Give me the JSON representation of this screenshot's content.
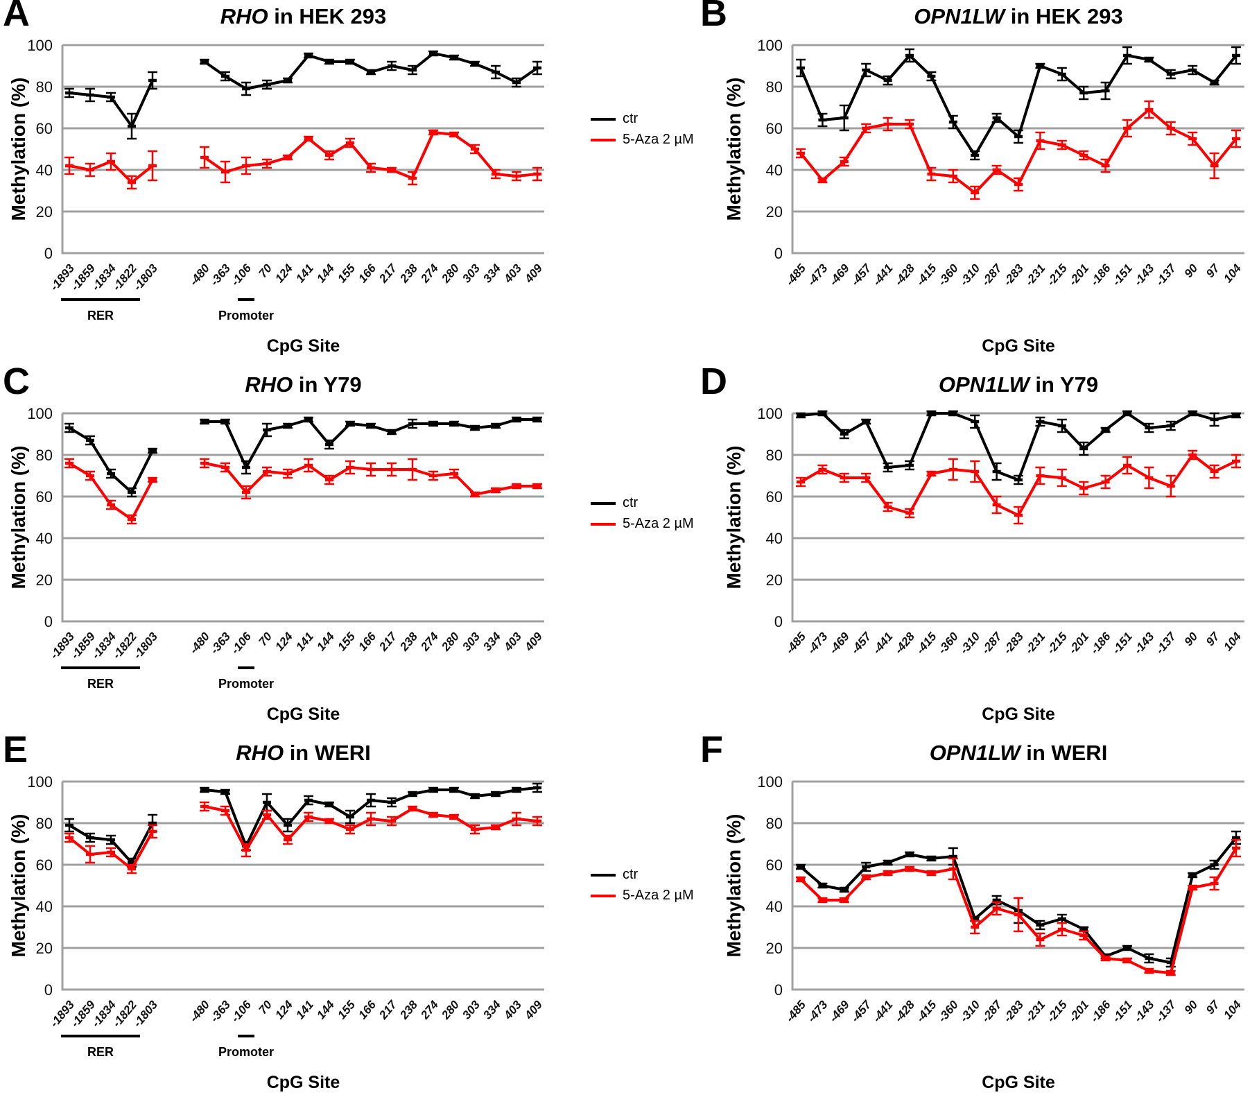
{
  "legend": {
    "ctr_label": "ctr",
    "aza_label": "5-Aza 2 µM"
  },
  "colors": {
    "ctr": "#000000",
    "aza": "#ff0000",
    "grid": "#a0a0a0",
    "tick_text": "#111111"
  },
  "axis": {
    "ylabel": "Methylation (%)",
    "xlabel": "CpG Site",
    "yticks": [
      0,
      20,
      40,
      60,
      80,
      100
    ],
    "ylim": [
      0,
      100
    ]
  },
  "chart_data": [
    {
      "panel_label": "A",
      "title_gene": "RHO",
      "title_suffix": " in HEK 293",
      "type": "line",
      "x_group_gap_after": 4,
      "regions": [
        {
          "label": "RER",
          "start": 0,
          "end": 3
        },
        {
          "label": "Promoter",
          "start": 7,
          "end": 7
        }
      ],
      "categories": [
        "-1893",
        "-1859",
        "-1834",
        "-1822",
        "-1803",
        "-480",
        "-363",
        "-106",
        "70",
        "124",
        "141",
        "144",
        "155",
        "166",
        "217",
        "238",
        "274",
        "280",
        "303",
        "334",
        "403",
        "409"
      ],
      "series": [
        {
          "name": "ctr",
          "color": "#000000",
          "values": [
            77,
            76,
            75,
            61,
            83,
            92,
            85,
            79,
            81,
            83,
            95,
            92,
            92,
            87,
            90,
            88,
            96,
            94,
            91,
            87,
            82,
            89
          ],
          "errors": [
            2,
            3,
            2,
            6,
            4,
            1,
            2,
            3,
            2,
            1,
            1,
            1,
            1,
            1,
            2,
            2,
            1,
            1,
            1,
            3,
            2,
            3
          ]
        },
        {
          "name": "5-Aza 2 µM",
          "color": "#ff0000",
          "values": [
            42,
            40,
            44,
            34,
            42,
            46,
            39,
            42,
            43,
            46,
            55,
            47,
            53,
            41,
            40,
            36,
            58,
            57,
            50,
            38,
            37,
            38
          ],
          "errors": [
            4,
            3,
            4,
            3,
            7,
            5,
            5,
            4,
            2,
            1,
            1,
            2,
            2,
            2,
            1,
            3,
            1,
            1,
            2,
            2,
            2,
            3
          ]
        }
      ]
    },
    {
      "panel_label": "B",
      "title_gene": "OPN1LW",
      "title_suffix": " in HEK 293",
      "type": "line",
      "x_group_gap_after": -1,
      "regions": [],
      "categories": [
        "-485",
        "-473",
        "-469",
        "-457",
        "-441",
        "-428",
        "-415",
        "-360",
        "-310",
        "-287",
        "-283",
        "-231",
        "-215",
        "-201",
        "-186",
        "-151",
        "-143",
        "-137",
        "90",
        "97",
        "104"
      ],
      "series": [
        {
          "name": "ctr",
          "color": "#000000",
          "values": [
            89,
            64,
            65,
            88,
            83,
            95,
            85,
            63,
            47,
            65,
            56,
            90,
            86,
            77,
            78,
            95,
            93,
            86,
            88,
            82,
            95
          ],
          "errors": [
            4,
            3,
            6,
            3,
            2,
            3,
            2,
            3,
            2,
            2,
            3,
            1,
            3,
            3,
            4,
            4,
            1,
            2,
            2,
            1,
            4
          ]
        },
        {
          "name": "5-Aza 2 µM",
          "color": "#ff0000",
          "values": [
            48,
            35,
            44,
            60,
            62,
            62,
            38,
            37,
            29,
            40,
            33,
            54,
            52,
            47,
            42,
            60,
            69,
            60,
            55,
            42,
            55
          ],
          "errors": [
            2,
            1,
            2,
            2,
            3,
            2,
            3,
            3,
            3,
            2,
            3,
            4,
            2,
            2,
            3,
            4,
            4,
            3,
            3,
            6,
            4
          ]
        }
      ]
    },
    {
      "panel_label": "C",
      "title_gene": "RHO",
      "title_suffix": " in Y79",
      "type": "line",
      "x_group_gap_after": 4,
      "regions": [
        {
          "label": "RER",
          "start": 0,
          "end": 3
        },
        {
          "label": "Promoter",
          "start": 7,
          "end": 7
        }
      ],
      "categories": [
        "-1893",
        "-1859",
        "-1834",
        "-1822",
        "-1803",
        "-480",
        "-363",
        "-106",
        "70",
        "124",
        "141",
        "144",
        "155",
        "166",
        "217",
        "238",
        "274",
        "280",
        "303",
        "334",
        "403",
        "409"
      ],
      "series": [
        {
          "name": "ctr",
          "color": "#000000",
          "values": [
            93,
            87,
            71,
            62,
            82,
            96,
            96,
            74,
            92,
            94,
            97,
            85,
            95,
            94,
            91,
            95,
            95,
            95,
            93,
            94,
            97,
            97
          ],
          "errors": [
            2,
            2,
            2,
            2,
            1,
            1,
            1,
            3,
            3,
            1,
            1,
            2,
            1,
            1,
            1,
            2,
            1,
            1,
            1,
            1,
            1,
            1
          ]
        },
        {
          "name": "5-Aza 2 µM",
          "color": "#ff0000",
          "values": [
            76,
            70,
            56,
            49,
            68,
            76,
            74,
            62,
            72,
            71,
            75,
            68,
            74,
            73,
            73,
            73,
            70,
            71,
            61,
            63,
            65,
            65
          ],
          "errors": [
            2,
            2,
            2,
            2,
            1,
            2,
            2,
            3,
            2,
            2,
            3,
            2,
            3,
            3,
            3,
            5,
            2,
            2,
            1,
            1,
            1,
            1
          ]
        }
      ]
    },
    {
      "panel_label": "D",
      "title_gene": "OPN1LW",
      "title_suffix": " in Y79",
      "type": "line",
      "x_group_gap_after": -1,
      "regions": [],
      "categories": [
        "-485",
        "-473",
        "-469",
        "-457",
        "-441",
        "-428",
        "-415",
        "-360",
        "-310",
        "-287",
        "-283",
        "-231",
        "-215",
        "-201",
        "-186",
        "-151",
        "-143",
        "-137",
        "90",
        "97",
        "104"
      ],
      "series": [
        {
          "name": "ctr",
          "color": "#000000",
          "values": [
            99,
            100,
            90,
            96,
            74,
            75,
            100,
            100,
            96,
            72,
            68,
            96,
            94,
            83,
            92,
            100,
            93,
            94,
            100,
            97,
            99
          ],
          "errors": [
            1,
            1,
            2,
            1,
            2,
            2,
            1,
            1,
            3,
            4,
            2,
            2,
            3,
            3,
            1,
            1,
            2,
            2,
            1,
            3,
            1
          ]
        },
        {
          "name": "5-Aza 2 µM",
          "color": "#ff0000",
          "values": [
            67,
            73,
            69,
            69,
            55,
            52,
            71,
            73,
            72,
            56,
            51,
            70,
            69,
            64,
            67,
            75,
            69,
            65,
            80,
            72,
            77
          ],
          "errors": [
            2,
            2,
            2,
            2,
            2,
            2,
            1,
            5,
            5,
            4,
            4,
            4,
            4,
            3,
            3,
            4,
            5,
            5,
            2,
            3,
            3
          ]
        }
      ]
    },
    {
      "panel_label": "E",
      "title_gene": "RHO",
      "title_suffix": " in WERI",
      "type": "line",
      "x_group_gap_after": 4,
      "regions": [
        {
          "label": "RER",
          "start": 0,
          "end": 3
        },
        {
          "label": "Promoter",
          "start": 7,
          "end": 7
        }
      ],
      "categories": [
        "-1893",
        "-1859",
        "-1834",
        "-1822",
        "-1803",
        "-480",
        "-363",
        "-106",
        "70",
        "124",
        "141",
        "144",
        "155",
        "166",
        "217",
        "238",
        "274",
        "280",
        "303",
        "334",
        "403",
        "409"
      ],
      "series": [
        {
          "name": "ctr",
          "color": "#000000",
          "values": [
            79,
            73,
            72,
            61,
            80,
            96,
            95,
            69,
            90,
            79,
            91,
            89,
            83,
            91,
            90,
            94,
            96,
            96,
            93,
            94,
            96,
            97
          ],
          "errors": [
            3,
            2,
            2,
            2,
            4,
            1,
            1,
            2,
            4,
            3,
            2,
            1,
            3,
            3,
            2,
            1,
            1,
            1,
            1,
            1,
            1,
            2
          ]
        },
        {
          "name": "5-Aza 2 µM",
          "color": "#ff0000",
          "values": [
            73,
            65,
            66,
            58,
            76,
            88,
            86,
            67,
            84,
            72,
            83,
            81,
            77,
            82,
            81,
            87,
            84,
            83,
            77,
            78,
            82,
            81
          ],
          "errors": [
            2,
            4,
            2,
            2,
            3,
            2,
            2,
            3,
            2,
            2,
            2,
            1,
            2,
            3,
            2,
            1,
            1,
            1,
            2,
            1,
            3,
            2
          ]
        }
      ]
    },
    {
      "panel_label": "F",
      "title_gene": "OPN1LW",
      "title_suffix": " in WERI",
      "type": "line",
      "x_group_gap_after": -1,
      "regions": [],
      "categories": [
        "-485",
        "-473",
        "-469",
        "-457",
        "-441",
        "-428",
        "-415",
        "-360",
        "-310",
        "-287",
        "-283",
        "-231",
        "-215",
        "-201",
        "-186",
        "-151",
        "-143",
        "-137",
        "90",
        "97",
        "104"
      ],
      "series": [
        {
          "name": "ctr",
          "color": "#000000",
          "values": [
            59,
            50,
            48,
            59,
            61,
            65,
            63,
            64,
            34,
            43,
            38,
            31,
            34,
            29,
            16,
            20,
            15,
            13,
            55,
            60,
            73
          ],
          "errors": [
            1,
            1,
            1,
            2,
            1,
            1,
            1,
            4,
            1,
            2,
            6,
            2,
            2,
            1,
            1,
            1,
            2,
            2,
            1,
            2,
            3
          ]
        },
        {
          "name": "5-Aza 2 µM",
          "color": "#ff0000",
          "values": [
            53,
            43,
            43,
            54,
            56,
            58,
            56,
            58,
            30,
            39,
            36,
            24,
            29,
            26,
            15,
            14,
            9,
            8,
            49,
            51,
            68
          ],
          "errors": [
            1,
            1,
            1,
            1,
            1,
            1,
            1,
            5,
            3,
            3,
            8,
            3,
            3,
            2,
            1,
            1,
            1,
            1,
            1,
            3,
            4
          ]
        }
      ]
    }
  ]
}
